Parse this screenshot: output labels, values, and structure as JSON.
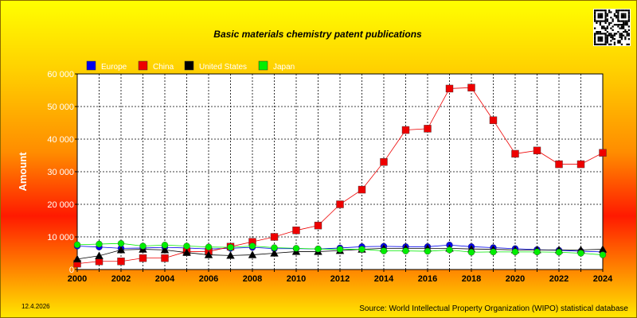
{
  "date_stamp": "12.4.2026",
  "source": "Source: World Intellectual Property Organization (WIPO) statistical database",
  "colors": {
    "Europe": "#0000ee",
    "China": "#ee0000",
    "United States": "#000000",
    "Japan": "#00ee00"
  },
  "chart_data": {
    "type": "line",
    "title": "Basic materials chemistry patent publications",
    "xlabel": "",
    "ylabel": "Amount",
    "x": [
      2000,
      2001,
      2002,
      2003,
      2004,
      2005,
      2006,
      2007,
      2008,
      2009,
      2010,
      2011,
      2012,
      2013,
      2014,
      2015,
      2016,
      2017,
      2018,
      2019,
      2020,
      2021,
      2022,
      2023,
      2024
    ],
    "xlim": [
      2000,
      2024
    ],
    "ylim": [
      0,
      60000
    ],
    "x_ticks": [
      2000,
      2002,
      2004,
      2006,
      2008,
      2010,
      2012,
      2014,
      2016,
      2018,
      2020,
      2022,
      2024
    ],
    "y_ticks": [
      0,
      10000,
      20000,
      30000,
      40000,
      50000,
      60000
    ],
    "y_tick_labels": [
      "0",
      "10 000",
      "20 000",
      "30 000",
      "40 000",
      "50 000",
      "60 000"
    ],
    "grid": true,
    "legend_position": "top-left",
    "series": [
      {
        "name": "Europe",
        "marker": "circle",
        "values": [
          7200,
          6900,
          6500,
          6600,
          6800,
          6600,
          6300,
          6500,
          6800,
          6400,
          6400,
          6300,
          6600,
          7000,
          7100,
          7000,
          7000,
          7500,
          7000,
          6700,
          6400,
          6100,
          5900,
          5600,
          5400
        ]
      },
      {
        "name": "China",
        "marker": "square",
        "values": [
          1800,
          2500,
          2500,
          3500,
          3500,
          5500,
          5500,
          7000,
          8500,
          10000,
          12000,
          13500,
          20000,
          24500,
          33000,
          42800,
          43200,
          55500,
          55800,
          45800,
          35500,
          36500,
          32300,
          32300,
          35800
        ]
      },
      {
        "name": "United States",
        "marker": "triangle",
        "values": [
          3200,
          4200,
          6000,
          6200,
          6000,
          5200,
          4500,
          4300,
          4500,
          5000,
          5500,
          5500,
          5800,
          6200,
          6500,
          6500,
          6500,
          6500,
          6300,
          6200,
          6000,
          6000,
          6000,
          6000,
          6200
        ]
      },
      {
        "name": "Japan",
        "marker": "circle",
        "values": [
          7600,
          7800,
          8000,
          7200,
          7500,
          7200,
          6900,
          6800,
          7200,
          6700,
          6500,
          6300,
          6200,
          6200,
          5700,
          5700,
          5600,
          6000,
          5300,
          5400,
          5400,
          5400,
          5300,
          5000,
          4500
        ]
      }
    ]
  }
}
